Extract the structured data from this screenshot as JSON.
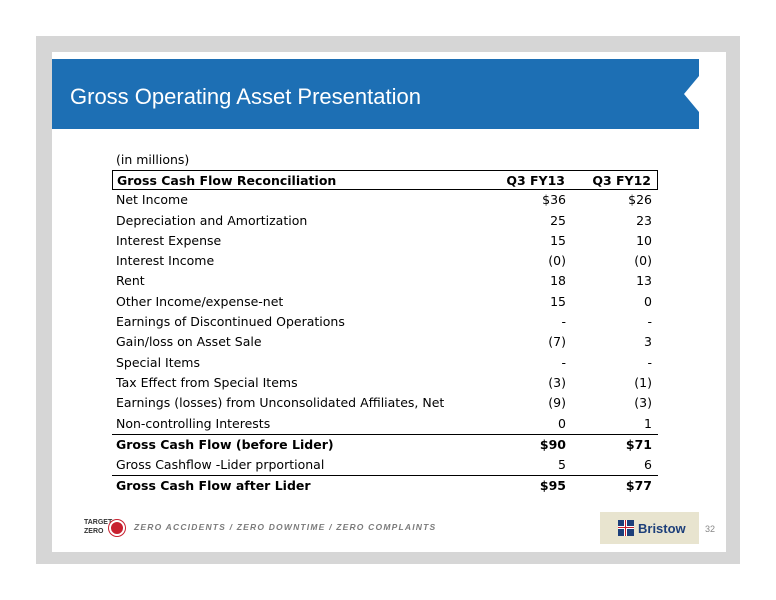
{
  "slide": {
    "title": "Gross Operating Asset Presentation",
    "page_number": "32"
  },
  "table": {
    "units": "(in millions)",
    "header": {
      "label": "Gross Cash Flow Reconciliation",
      "col1": "Q3 FY13",
      "col2": "Q3 FY12"
    },
    "rows": [
      {
        "label": "Net Income",
        "v1": "$36",
        "v2": "$26"
      },
      {
        "label": "Depreciation and Amortization",
        "v1": "25",
        "v2": "23"
      },
      {
        "label": "Interest Expense",
        "v1": "15",
        "v2": "10"
      },
      {
        "label": "Interest Income",
        "v1": "(0)",
        "v2": "(0)"
      },
      {
        "label": "Rent",
        "v1": "18",
        "v2": "13"
      },
      {
        "label": "Other Income/expense-net",
        "v1": "15",
        "v2": "0"
      },
      {
        "label": "Earnings of Discontinued Operations",
        "v1": "-",
        "v2": "-"
      },
      {
        "label": "Gain/loss on Asset Sale",
        "v1": "(7)",
        "v2": "3"
      },
      {
        "label": "Special Items",
        "v1": "-",
        "v2": "-"
      },
      {
        "label": "Tax Effect from Special Items",
        "v1": "(3)",
        "v2": "(1)"
      },
      {
        "label": "Earnings (losses) from Unconsolidated Affiliates, Net",
        "v1": "(9)",
        "v2": "(3)"
      },
      {
        "label": "Non-controlling Interests",
        "v1": "0",
        "v2": "1"
      },
      {
        "label": "Gross Cash Flow (before Lider)",
        "v1": "$90",
        "v2": "$71"
      },
      {
        "label": "Gross Cashflow -Lider prportional",
        "v1": "5",
        "v2": "6"
      },
      {
        "label": "Gross Cash Flow after Lider",
        "v1": "$95",
        "v2": "$77"
      }
    ]
  },
  "footer": {
    "target_zero_logo": "TARGET ZERO",
    "tagline": "ZERO ACCIDENTS / ZERO DOWNTIME / ZERO COMPLAINTS",
    "brand_name": "Bristow"
  },
  "colors": {
    "title_bar": "#1d6fb4",
    "frame": "#d6d6d6",
    "brand_bg": "#e8e4cf",
    "brand_text": "#1d3f7a",
    "accent_red": "#c8202f"
  }
}
